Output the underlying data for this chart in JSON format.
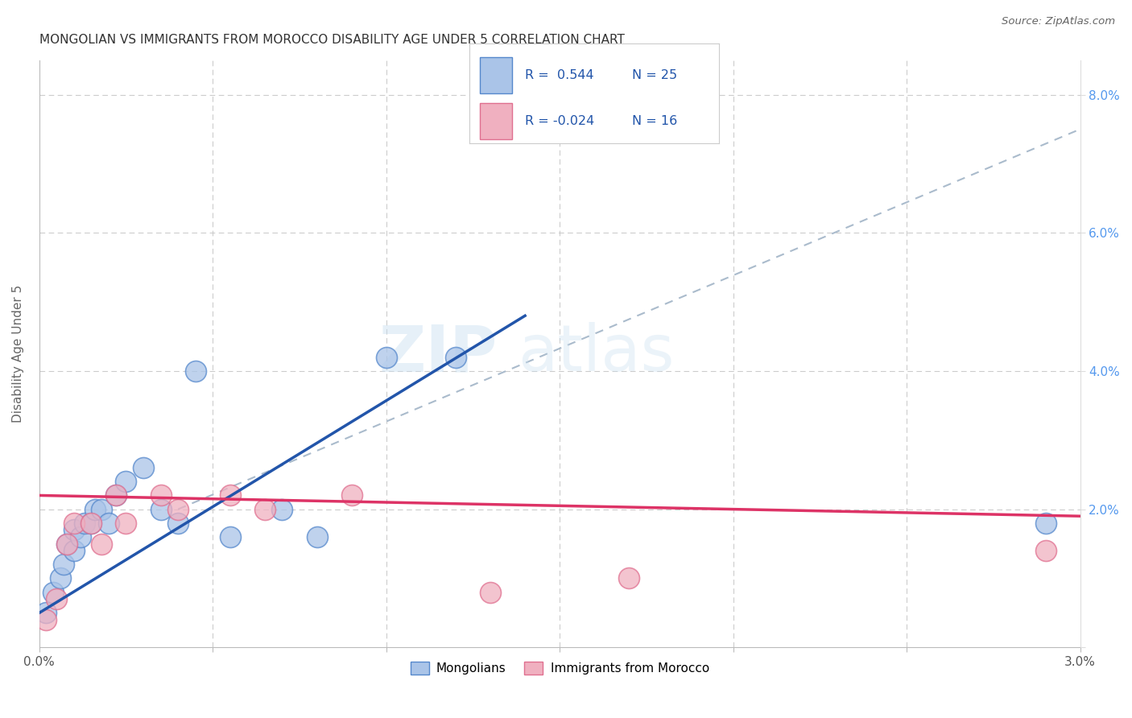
{
  "title": "MONGOLIAN VS IMMIGRANTS FROM MOROCCO DISABILITY AGE UNDER 5 CORRELATION CHART",
  "source": "Source: ZipAtlas.com",
  "ylabel": "Disability Age Under 5",
  "watermark": "ZIPatlas",
  "mongolian_R": 0.544,
  "mongolian_N": 25,
  "morocco_R": -0.024,
  "morocco_N": 16,
  "xlim": [
    0.0,
    0.03
  ],
  "ylim": [
    0.0,
    0.085
  ],
  "yticks": [
    0.0,
    0.02,
    0.04,
    0.06,
    0.08
  ],
  "ytick_labels": [
    "",
    "2.0%",
    "4.0%",
    "6.0%",
    "8.0%"
  ],
  "mongolian_color": "#aac4e8",
  "mongolian_edge_color": "#5588cc",
  "mongolian_line_color": "#2255aa",
  "morocco_color": "#f0b0c0",
  "morocco_edge_color": "#e07090",
  "morocco_line_color": "#dd3366",
  "mongolian_points": [
    [
      0.0002,
      0.005
    ],
    [
      0.0004,
      0.008
    ],
    [
      0.0006,
      0.01
    ],
    [
      0.0007,
      0.012
    ],
    [
      0.0008,
      0.015
    ],
    [
      0.001,
      0.014
    ],
    [
      0.001,
      0.017
    ],
    [
      0.0012,
      0.016
    ],
    [
      0.0013,
      0.018
    ],
    [
      0.0015,
      0.018
    ],
    [
      0.0016,
      0.02
    ],
    [
      0.0018,
      0.02
    ],
    [
      0.002,
      0.018
    ],
    [
      0.0022,
      0.022
    ],
    [
      0.0025,
      0.024
    ],
    [
      0.003,
      0.026
    ],
    [
      0.0035,
      0.02
    ],
    [
      0.004,
      0.018
    ],
    [
      0.0045,
      0.04
    ],
    [
      0.0055,
      0.016
    ],
    [
      0.007,
      0.02
    ],
    [
      0.008,
      0.016
    ],
    [
      0.01,
      0.042
    ],
    [
      0.012,
      0.042
    ],
    [
      0.029,
      0.018
    ]
  ],
  "morocco_points": [
    [
      0.0002,
      0.004
    ],
    [
      0.0005,
      0.007
    ],
    [
      0.0008,
      0.015
    ],
    [
      0.001,
      0.018
    ],
    [
      0.0015,
      0.018
    ],
    [
      0.0018,
      0.015
    ],
    [
      0.0022,
      0.022
    ],
    [
      0.0025,
      0.018
    ],
    [
      0.0035,
      0.022
    ],
    [
      0.004,
      0.02
    ],
    [
      0.0055,
      0.022
    ],
    [
      0.0065,
      0.02
    ],
    [
      0.009,
      0.022
    ],
    [
      0.013,
      0.008
    ],
    [
      0.017,
      0.01
    ],
    [
      0.029,
      0.014
    ]
  ],
  "blue_line_x0": 0.0,
  "blue_line_y0": 0.005,
  "blue_line_x1": 0.014,
  "blue_line_y1": 0.048,
  "pink_line_x0": 0.0,
  "pink_line_y0": 0.022,
  "pink_line_x1": 0.03,
  "pink_line_y1": 0.019,
  "dash_line_x0": 0.004,
  "dash_line_y0": 0.02,
  "dash_line_x1": 0.03,
  "dash_line_y1": 0.075,
  "background_color": "#ffffff",
  "grid_color": "#cccccc",
  "title_fontsize": 11,
  "axis_label_fontsize": 11,
  "right_tick_color": "#5599ee"
}
